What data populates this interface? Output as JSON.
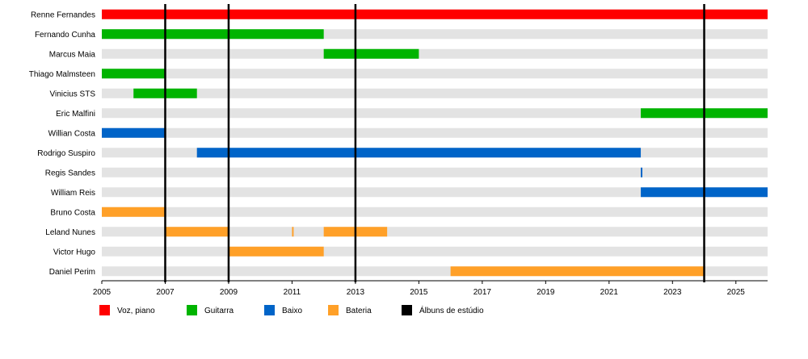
{
  "chart_data": {
    "type": "bar",
    "orientation": "horizontal-timeline",
    "title": "",
    "xlabel": "",
    "ylabel": "",
    "xlim": [
      2005,
      2026
    ],
    "x_ticks": [
      2005,
      2007,
      2009,
      2011,
      2013,
      2015,
      2017,
      2019,
      2021,
      2023,
      2025
    ],
    "grid": true,
    "legend_position": "bottom",
    "members": [
      "Renne Fernandes",
      "Fernando Cunha",
      "Marcus Maia",
      "Thiago Malmsteen",
      "Vinicius STS",
      "Eric Malfini",
      "Willian Costa",
      "Rodrigo Suspiro",
      "Regis Sandes",
      "William Reis",
      "Bruno Costa",
      "Leland Nunes",
      "Victor Hugo",
      "Daniel Perim"
    ],
    "roles": [
      {
        "key": "vocals",
        "name": "Voz, piano",
        "color": "#ff0000"
      },
      {
        "key": "guitar",
        "name": "Guitarra",
        "color": "#00b400"
      },
      {
        "key": "bass",
        "name": "Baixo",
        "color": "#0064c8"
      },
      {
        "key": "drums",
        "name": "Bateria",
        "color": "#ffa028"
      },
      {
        "key": "albums",
        "name": "Álbuns de estúdio",
        "color": "#000000"
      }
    ],
    "periods": [
      {
        "member": "Renne Fernandes",
        "role": "vocals",
        "start": 2005.0,
        "end": 2026.0
      },
      {
        "member": "Fernando Cunha",
        "role": "guitar",
        "start": 2005.0,
        "end": 2012.0
      },
      {
        "member": "Marcus Maia",
        "role": "guitar",
        "start": 2012.0,
        "end": 2015.0
      },
      {
        "member": "Thiago Malmsteen",
        "role": "guitar",
        "start": 2005.0,
        "end": 2007.0
      },
      {
        "member": "Vinicius STS",
        "role": "guitar",
        "start": 2006.0,
        "end": 2008.0
      },
      {
        "member": "Eric Malfini",
        "role": "guitar",
        "start": 2022.0,
        "end": 2026.0
      },
      {
        "member": "Willian Costa",
        "role": "bass",
        "start": 2005.0,
        "end": 2007.0
      },
      {
        "member": "Rodrigo Suspiro",
        "role": "bass",
        "start": 2008.0,
        "end": 2022.0
      },
      {
        "member": "Regis Sandes",
        "role": "bass",
        "start": 2022.0,
        "end": 2022.05
      },
      {
        "member": "William Reis",
        "role": "bass",
        "start": 2022.0,
        "end": 2026.0
      },
      {
        "member": "Bruno Costa",
        "role": "drums",
        "start": 2005.0,
        "end": 2007.0
      },
      {
        "member": "Leland Nunes",
        "role": "drums",
        "start": 2007.0,
        "end": 2009.0
      },
      {
        "member": "Leland Nunes",
        "role": "drums",
        "start": 2011.0,
        "end": 2011.05
      },
      {
        "member": "Leland Nunes",
        "role": "drums",
        "start": 2012.0,
        "end": 2014.0
      },
      {
        "member": "Victor Hugo",
        "role": "drums",
        "start": 2009.0,
        "end": 2012.0
      },
      {
        "member": "Daniel Perim",
        "role": "drums",
        "start": 2016.0,
        "end": 2024.0
      }
    ],
    "albums": [
      2007.0,
      2009.0,
      2013.0,
      2024.0
    ]
  }
}
